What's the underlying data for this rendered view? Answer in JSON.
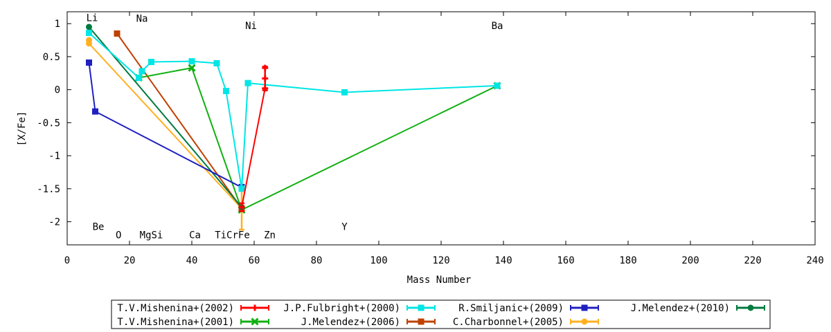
{
  "chart_data": {
    "type": "line",
    "xlabel": "Mass Number",
    "ylabel": "[X/Fe]",
    "xlim": [
      0,
      240
    ],
    "ylim": [
      -2.35,
      1.18
    ],
    "xticks": [
      0,
      20,
      40,
      60,
      80,
      100,
      120,
      140,
      160,
      180,
      200,
      220,
      240
    ],
    "yticks": [
      1,
      0.5,
      0,
      -0.5,
      -1,
      -1.5,
      -2
    ],
    "ytick_labels": [
      "1",
      "0.5",
      "0",
      "-0.5",
      "-1",
      "-1.5",
      "-2"
    ],
    "grid": false,
    "legend_position": "bottom",
    "element_labels": [
      {
        "text": "Li",
        "x": 8,
        "y": 1.09
      },
      {
        "text": "Na",
        "x": 24,
        "y": 1.08
      },
      {
        "text": "Ni",
        "x": 59,
        "y": 0.97
      },
      {
        "text": "Ba",
        "x": 138,
        "y": 0.97
      },
      {
        "text": "Be",
        "x": 10,
        "y": -2.07
      },
      {
        "text": "O",
        "x": 16.5,
        "y": -2.2
      },
      {
        "text": "MgSi",
        "x": 27,
        "y": -2.2
      },
      {
        "text": "Ca",
        "x": 41,
        "y": -2.2
      },
      {
        "text": "TiCrFe",
        "x": 53,
        "y": -2.2
      },
      {
        "text": "Zn",
        "x": 65,
        "y": -2.2
      },
      {
        "text": "Y",
        "x": 89,
        "y": -2.07
      }
    ],
    "series": [
      {
        "name": "T.V.Mishenina+(2002)",
        "color": "#ff0000",
        "marker": "plus",
        "points": [
          [
            56,
            -1.78
          ],
          [
            63.5,
            0.02
          ],
          [
            63.5,
            0.17
          ],
          [
            63.5,
            0.33
          ]
        ],
        "errorbars": [
          [
            56,
            -1.78,
            0.06
          ],
          [
            63.5,
            0.17,
            0.18
          ]
        ]
      },
      {
        "name": "J.P.Fulbright+(2000)",
        "color": "#00e5e5",
        "marker": "square",
        "points": [
          [
            7,
            0.86
          ],
          [
            23,
            0.18
          ],
          [
            24,
            0.28
          ],
          [
            27,
            0.42
          ],
          [
            40,
            0.43
          ],
          [
            48,
            0.4
          ],
          [
            51,
            -0.02
          ],
          [
            56,
            -1.5
          ],
          [
            58,
            0.1
          ],
          [
            89,
            -0.04
          ],
          [
            138,
            0.06
          ]
        ],
        "errorbars": []
      },
      {
        "name": "R.Smiljanic+(2009)",
        "color": "#2020c0",
        "marker": "square",
        "points": [
          [
            7,
            0.41
          ],
          [
            9,
            -0.33
          ],
          [
            56,
            -1.48
          ]
        ],
        "errorbars": [
          [
            56,
            -1.48,
            0.04
          ]
        ]
      },
      {
        "name": "J.Melendez+(2010)",
        "color": "#007a40",
        "marker": "circle",
        "points": [
          [
            7,
            0.95
          ],
          [
            56,
            -1.78
          ]
        ],
        "errorbars": []
      },
      {
        "name": "T.V.Mishenina+(2001)",
        "color": "#10b010",
        "marker": "cross",
        "points": [
          [
            23,
            0.18
          ],
          [
            40,
            0.33
          ],
          [
            56,
            -1.82
          ],
          [
            138,
            0.06
          ]
        ],
        "errorbars": []
      },
      {
        "name": "J.Melendez+(2006)",
        "color": "#c04000",
        "marker": "square",
        "points": [
          [
            16,
            0.85
          ],
          [
            56,
            -1.8
          ]
        ],
        "errorbars": []
      },
      {
        "name": "C.Charbonnel+(2005)",
        "color": "#ffb020",
        "marker": "circle",
        "points": [
          [
            7,
            0.75
          ],
          [
            7,
            0.7
          ],
          [
            56,
            -1.8
          ]
        ],
        "errorbars": [
          [
            56,
            -1.8,
            0.32
          ]
        ]
      }
    ]
  }
}
